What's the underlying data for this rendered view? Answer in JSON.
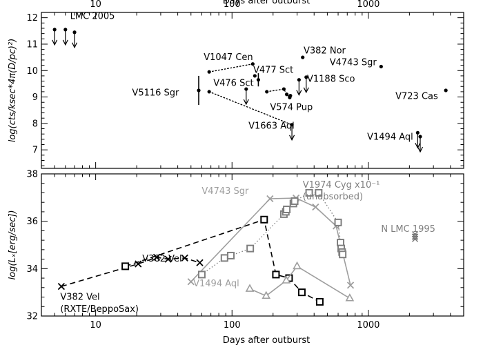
{
  "chart_data": [
    {
      "type": "scatter",
      "xscale": "log",
      "xlim": [
        4,
        5000
      ],
      "ylim": [
        6.3,
        12.2
      ],
      "x_ticklabels": [
        "10",
        "100",
        "1000"
      ],
      "y_ticklabels": [
        "7",
        "8",
        "9",
        "10",
        "11",
        "12"
      ],
      "xlabel_top": "Days after outburst",
      "ylabel": "log(cts/ksec*4π(D/pc)²)",
      "grid": false,
      "legend": "none",
      "points": [
        {
          "x": 5.0,
          "y": 11.55,
          "upper_limit": true
        },
        {
          "x": 6.0,
          "y": 11.55,
          "upper_limit": true
        },
        {
          "x": 7.0,
          "y": 11.45,
          "upper_limit": true
        },
        {
          "x": 57,
          "y": 9.25,
          "err": 0.55
        },
        {
          "x": 68,
          "y": 9.95
        },
        {
          "x": 68,
          "y": 9.2
        },
        {
          "x": 127,
          "y": 9.3,
          "upper_limit": true
        },
        {
          "x": 142,
          "y": 10.25
        },
        {
          "x": 147,
          "y": 9.8
        },
        {
          "x": 156,
          "y": 9.65,
          "err": 0.25
        },
        {
          "x": 180,
          "y": 9.2
        },
        {
          "x": 240,
          "y": 9.3
        },
        {
          "x": 252,
          "y": 9.1
        },
        {
          "x": 265,
          "y": 8.98
        },
        {
          "x": 268,
          "y": 9.05
        },
        {
          "x": 275,
          "y": 7.95,
          "upper_limit": true
        },
        {
          "x": 310,
          "y": 9.65,
          "upper_limit": true
        },
        {
          "x": 330,
          "y": 10.5
        },
        {
          "x": 350,
          "y": 9.75,
          "upper_limit": true
        },
        {
          "x": 1240,
          "y": 10.15
        },
        {
          "x": 2300,
          "y": 7.65,
          "upper_limit": true
        },
        {
          "x": 2400,
          "y": 7.5,
          "upper_limit": true
        },
        {
          "x": 3700,
          "y": 9.25
        }
      ],
      "connectors": [
        {
          "style": "dotted",
          "points": [
            [
              68,
              9.95
            ],
            [
              142,
              10.25
            ]
          ]
        },
        {
          "style": "dotted",
          "points": [
            [
              68,
              9.2
            ],
            [
              275,
              7.95
            ]
          ]
        },
        {
          "style": "dotted",
          "points": [
            [
              180,
              9.2
            ],
            [
              240,
              9.3
            ],
            [
              252,
              9.1
            ],
            [
              265,
              8.98
            ]
          ]
        }
      ],
      "annotations": [
        {
          "text": "LMC 2005",
          "x": 6.5,
          "y": 11.95
        },
        {
          "text": "V1047 Cen",
          "x": 62,
          "y": 10.4
        },
        {
          "text": "V382 Nor",
          "x": 335,
          "y": 10.65
        },
        {
          "text": "V477 Sct",
          "x": 143,
          "y": 9.92
        },
        {
          "text": "V4743 Sgr",
          "x": 520,
          "y": 10.2
        },
        {
          "text": "V476 Sct",
          "x": 73,
          "y": 9.42
        },
        {
          "text": "V1188 Sco",
          "x": 355,
          "y": 9.58
        },
        {
          "text": "V5116 Sgr",
          "x": 18.5,
          "y": 9.05
        },
        {
          "text": "V574 Pup",
          "x": 190,
          "y": 8.5
        },
        {
          "text": "V723 Cas",
          "x": 1580,
          "y": 8.92
        },
        {
          "text": "V1663 Aql",
          "x": 132,
          "y": 7.8
        },
        {
          "text": "V1494 Aql",
          "x": 980,
          "y": 7.38
        }
      ]
    },
    {
      "type": "line",
      "xscale": "log",
      "xlim": [
        4,
        5000
      ],
      "ylim": [
        32,
        38
      ],
      "x_ticklabels": [
        "10",
        "100",
        "1000"
      ],
      "y_ticklabels": [
        "32",
        "34",
        "36",
        "38"
      ],
      "xlabel": "Days after outburst",
      "ylabel": "log(Lₓ[erg/sec])",
      "grid": false,
      "legend": "none",
      "series": [
        {
          "name": "V382 Vel",
          "color": "#000000",
          "dash": "dashed",
          "marker": "cross",
          "x": [
            5.6,
            20.5,
            28,
            34,
            45,
            58
          ],
          "y": [
            33.25,
            34.2,
            34.48,
            34.4,
            34.45,
            34.25
          ]
        },
        {
          "name": "V382 Vel",
          "color": "#000000",
          "dash": "dashed",
          "marker": "square",
          "x": [
            16.5,
            172,
            210,
            262,
            325,
            440
          ],
          "y": [
            34.1,
            36.07,
            33.75,
            33.6,
            33.0,
            32.6
          ]
        },
        {
          "name": "V4743 Sgr",
          "color": "#9e9e9e",
          "dash": "solid",
          "marker": "cross",
          "x": [
            50,
            190,
            295,
            410,
            580,
            740
          ],
          "y": [
            33.45,
            36.95,
            36.98,
            36.6,
            35.8,
            33.3
          ]
        },
        {
          "name": "V1494 Aql",
          "color": "#9e9e9e",
          "dash": "solid",
          "marker": "triangle",
          "x": [
            135,
            178,
            250,
            300,
            730
          ],
          "y": [
            33.15,
            32.85,
            33.5,
            34.1,
            32.75
          ]
        },
        {
          "name": "V1974 Cyg x10⁻¹",
          "color": "#7f7f7f",
          "dash": "dotted",
          "marker": "square",
          "x": [
            60,
            88,
            98,
            136,
            240,
            248,
            252,
            282,
            288,
            368,
            432,
            600,
            625,
            632,
            642,
            648
          ],
          "y": [
            33.75,
            34.45,
            34.55,
            34.85,
            36.3,
            36.4,
            36.5,
            36.75,
            36.85,
            37.2,
            37.2,
            35.95,
            35.1,
            34.85,
            34.7,
            34.6
          ]
        },
        {
          "name": "N LMC 1995",
          "color": "#777777",
          "dash": "none",
          "marker": "asterisk",
          "x": [
            2200,
            2200,
            2200
          ],
          "y": [
            35.45,
            35.35,
            35.25
          ]
        }
      ],
      "annotations": [
        {
          "text": "V4743 Sgr",
          "x": 60,
          "y": 37.15,
          "color": "#9e9e9e"
        },
        {
          "text": "V1974 Cyg x10⁻¹",
          "x": 330,
          "y": 37.42,
          "color": "#7f7f7f"
        },
        {
          "text": "(unabsorbed)",
          "x": 330,
          "y": 36.92,
          "color": "#7f7f7f"
        },
        {
          "text": "N LMC 1995",
          "x": 1240,
          "y": 35.55,
          "color": "#7f7f7f"
        },
        {
          "text": "V382 Vel",
          "x": 22,
          "y": 34.3,
          "color": "#000000"
        },
        {
          "text": "V382 Vel",
          "x": 5.5,
          "y": 32.68,
          "color": "#000000"
        },
        {
          "text": "(RXTE/BeppoSax)",
          "x": 5.5,
          "y": 32.18,
          "color": "#000000"
        },
        {
          "text": "V1494 Aql",
          "x": 52,
          "y": 33.25,
          "color": "#9e9e9e"
        }
      ]
    }
  ]
}
